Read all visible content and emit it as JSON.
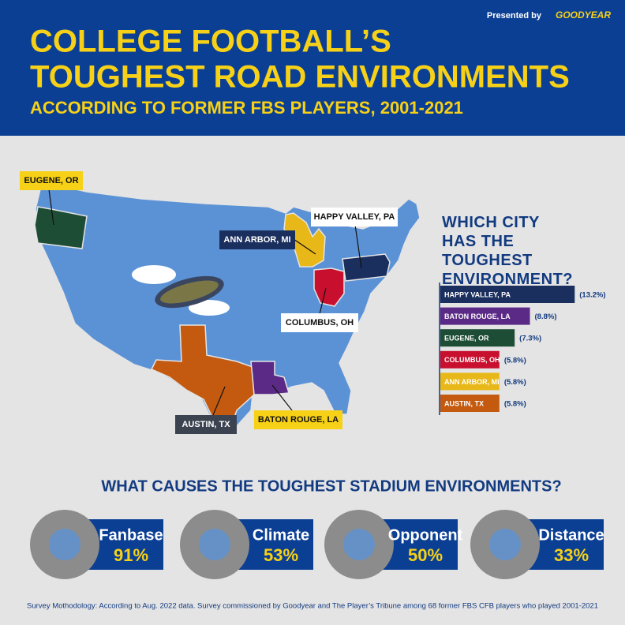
{
  "header": {
    "presented_by": "Presented by",
    "sponsor": "GOODYEAR",
    "title_line1": "COLLEGE FOOTBALL’S",
    "title_line2": "TOUGHEST ROAD ENVIRONMENTS",
    "subtitle": "ACCORDING TO FORMER FBS PLAYERS, 2001-2021"
  },
  "map": {
    "labels": [
      "EUGENE, OR",
      "ANN ARBOR, MI",
      "HAPPY VALLEY, PA",
      "COLUMBUS, OH",
      "AUSTIN, TX",
      "BATON ROUGE, LA"
    ]
  },
  "chart_data": {
    "type": "bar",
    "orientation": "horizontal",
    "title": "WHICH CITY HAS THE TOUGHEST ENVIRONMENT?",
    "categories": [
      "HAPPY VALLEY, PA",
      "BATON ROUGE, LA",
      "EUGENE, OR",
      "COLUMBUS, OH",
      "ANN ARBOR, MI",
      "AUSTIN, TX"
    ],
    "values": [
      13.2,
      8.8,
      7.3,
      5.8,
      5.8,
      5.8
    ],
    "value_labels": [
      "(13.2%)",
      "(8.8%)",
      "(7.3%)",
      "(5.8%)",
      "(5.8%)",
      "(5.8%)"
    ],
    "colors": [
      "#1b2f5e",
      "#5b2a86",
      "#1e4d35",
      "#c8102e",
      "#e8b818",
      "#c45a10"
    ]
  },
  "causes": {
    "title": "WHAT CAUSES THE TOUGHEST STADIUM ENVIRONMENTS?",
    "items": [
      {
        "name": "Fanbase",
        "value": "91%"
      },
      {
        "name": "Climate",
        "value": "53%"
      },
      {
        "name": "Opponent",
        "value": "50%"
      },
      {
        "name": "Distance",
        "value": "33%"
      }
    ]
  },
  "footnote": "Survey Mothodology: According to Aug. 2022 data. Survey commissioned by Goodyear and The Player’s Tribune among 68 former FBS CFB players who played 2001-2021"
}
